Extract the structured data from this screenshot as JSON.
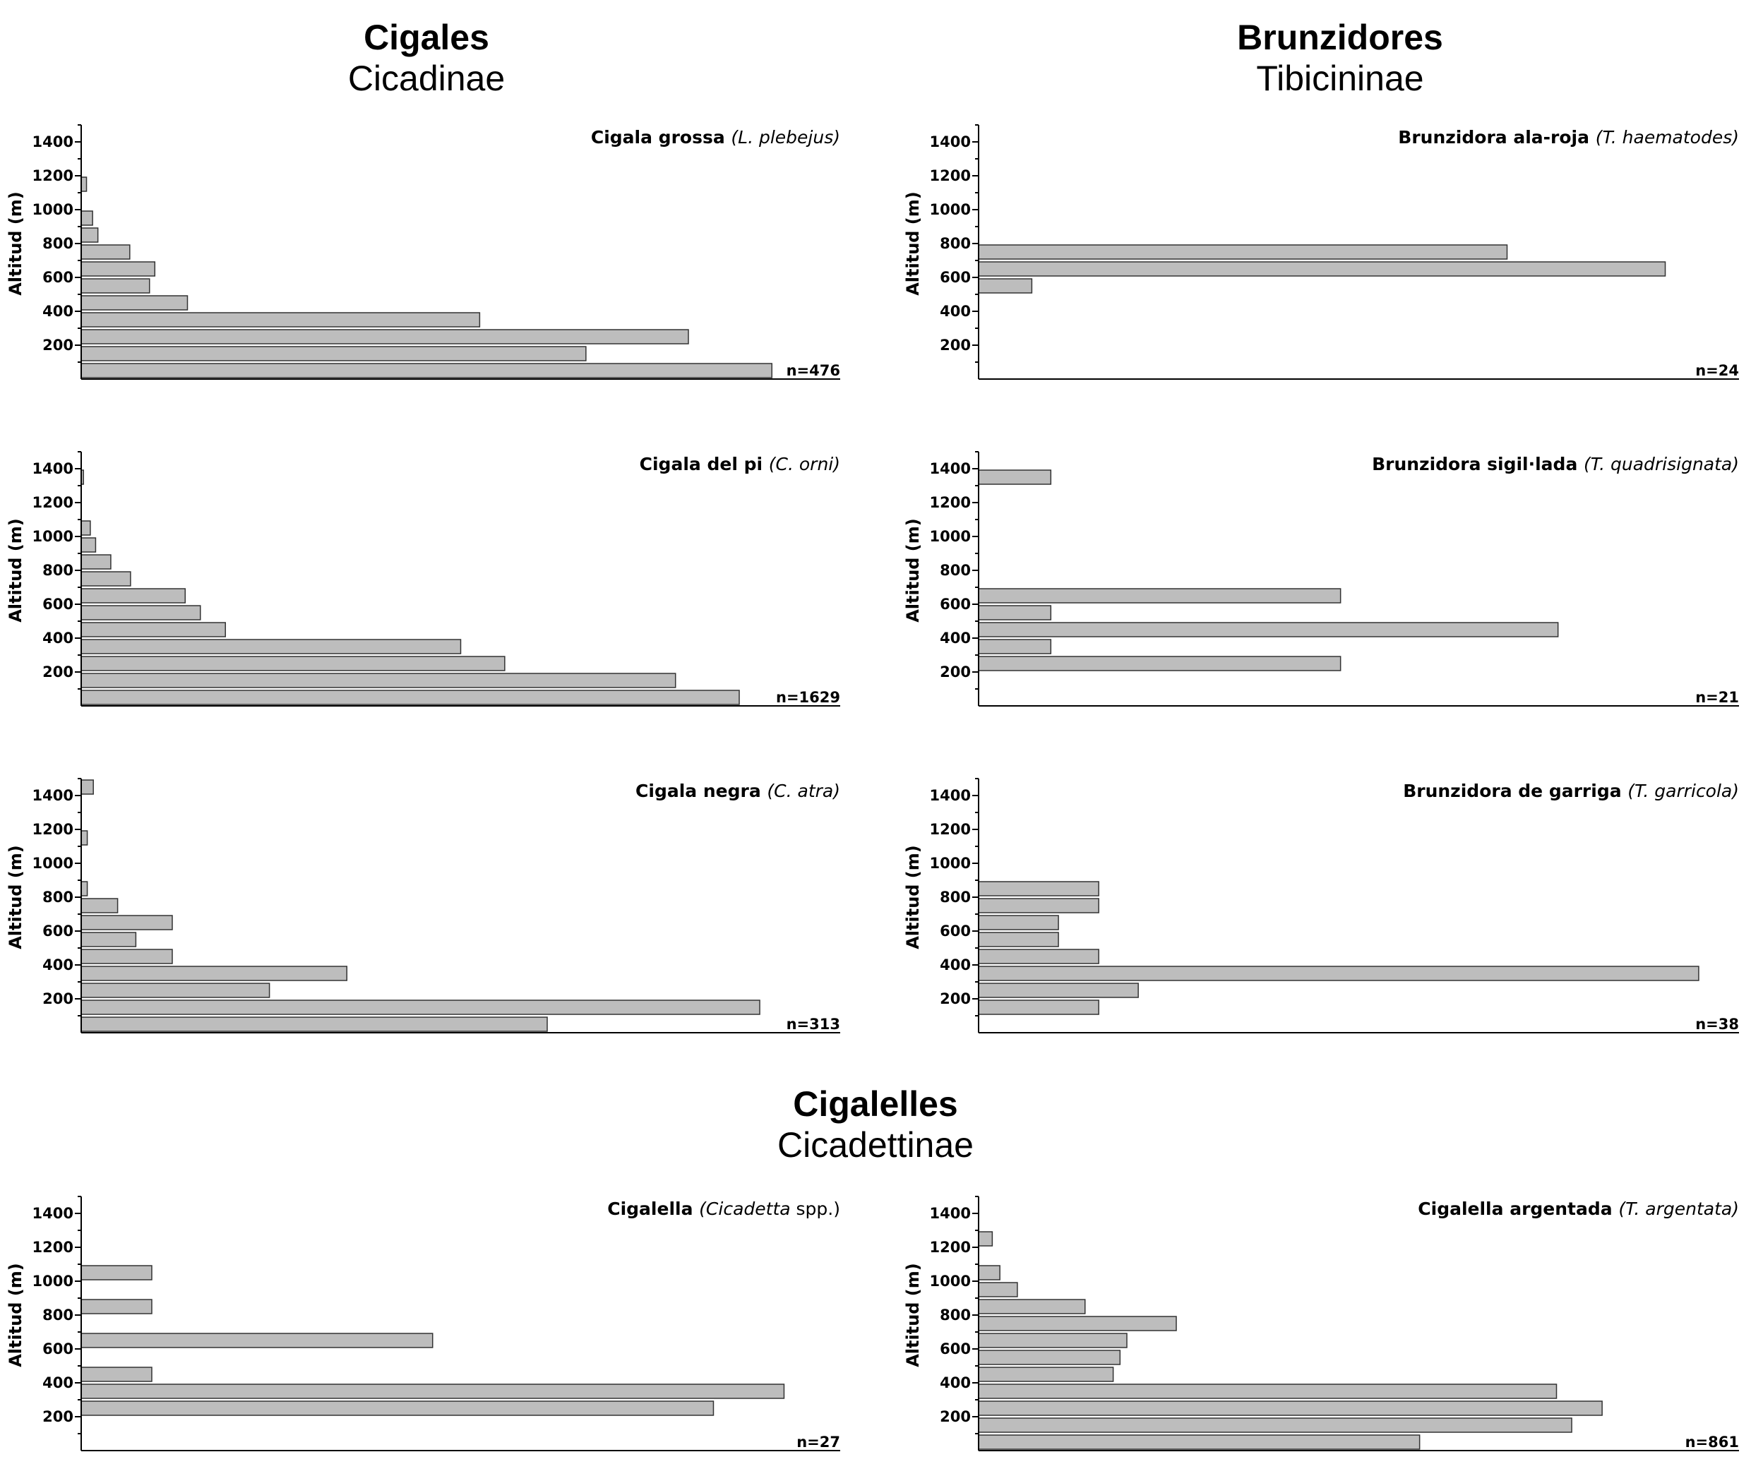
{
  "groups": [
    {
      "common": "Cigales",
      "latin": "Cicadinae"
    },
    {
      "common": "Brunzidores",
      "latin": "Tibicininae"
    },
    {
      "common": "Cigalelles",
      "latin": "Cicadettinae"
    }
  ],
  "colors": {
    "bar_fill": "#bdbdbd",
    "bar_stroke": "#333333",
    "axis": "#000000"
  },
  "chart_data": [
    {
      "type": "bar",
      "orientation": "horizontal",
      "title_common": "Cigala grossa",
      "title_latin": "(L. plebejus)",
      "ylabel": "Altitud (m)",
      "n_label": "n=476",
      "yticks": [
        "200",
        "400",
        "600",
        "800",
        "1000",
        "1200",
        "1400"
      ],
      "bin_width_m": 100,
      "ylim": [
        0,
        1500
      ],
      "xlim": [
        0,
        100
      ],
      "bins": [
        {
          "bin_start": 0,
          "value": 91
        },
        {
          "bin_start": 100,
          "value": 66.5
        },
        {
          "bin_start": 200,
          "value": 80
        },
        {
          "bin_start": 300,
          "value": 52.5
        },
        {
          "bin_start": 400,
          "value": 14
        },
        {
          "bin_start": 500,
          "value": 9
        },
        {
          "bin_start": 600,
          "value": 9.7
        },
        {
          "bin_start": 700,
          "value": 6.4
        },
        {
          "bin_start": 800,
          "value": 2.2
        },
        {
          "bin_start": 900,
          "value": 1.5
        },
        {
          "bin_start": 1100,
          "value": 0.7
        }
      ]
    },
    {
      "type": "bar",
      "orientation": "horizontal",
      "title_common": "Brunzidora ala-roja",
      "title_latin": "(T. haematodes)",
      "ylabel": "Altitud (m)",
      "n_label": "n=24",
      "yticks": [
        "200",
        "400",
        "600",
        "800",
        "1000",
        "1200",
        "1400"
      ],
      "bin_width_m": 100,
      "ylim": [
        0,
        1500
      ],
      "xlim": [
        0,
        100
      ],
      "bins": [
        {
          "bin_start": 500,
          "value": 7
        },
        {
          "bin_start": 600,
          "value": 90.3
        },
        {
          "bin_start": 700,
          "value": 69.5
        }
      ]
    },
    {
      "type": "bar",
      "orientation": "horizontal",
      "title_common": "Cigala del pi",
      "title_latin": "(C. orni)",
      "ylabel": "Altitud (m)",
      "n_label": "n=1629",
      "yticks": [
        "200",
        "400",
        "600",
        "800",
        "1000",
        "1200",
        "1400"
      ],
      "bin_width_m": 100,
      "ylim": [
        0,
        1500
      ],
      "xlim": [
        0,
        100
      ],
      "bins": [
        {
          "bin_start": 0,
          "value": 86.7
        },
        {
          "bin_start": 100,
          "value": 78.3
        },
        {
          "bin_start": 200,
          "value": 55.8
        },
        {
          "bin_start": 300,
          "value": 50
        },
        {
          "bin_start": 400,
          "value": 19
        },
        {
          "bin_start": 500,
          "value": 15.7
        },
        {
          "bin_start": 600,
          "value": 13.7
        },
        {
          "bin_start": 700,
          "value": 6.5
        },
        {
          "bin_start": 800,
          "value": 3.9
        },
        {
          "bin_start": 900,
          "value": 1.9
        },
        {
          "bin_start": 1000,
          "value": 1.2
        },
        {
          "bin_start": 1300,
          "value": 0.3
        }
      ]
    },
    {
      "type": "bar",
      "orientation": "horizontal",
      "title_common": "Brunzidora sigil·lada",
      "title_latin": "(T. quadrisignata)",
      "ylabel": "Altitud (m)",
      "n_label": "n=21",
      "yticks": [
        "200",
        "400",
        "600",
        "800",
        "1000",
        "1200",
        "1400"
      ],
      "bin_width_m": 100,
      "ylim": [
        0,
        1500
      ],
      "xlim": [
        0,
        100
      ],
      "bins": [
        {
          "bin_start": 200,
          "value": 47.6
        },
        {
          "bin_start": 300,
          "value": 9.5
        },
        {
          "bin_start": 400,
          "value": 76.2
        },
        {
          "bin_start": 500,
          "value": 9.5
        },
        {
          "bin_start": 600,
          "value": 47.6
        },
        {
          "bin_start": 1300,
          "value": 9.5
        }
      ]
    },
    {
      "type": "bar",
      "orientation": "horizontal",
      "title_common": "Cigala negra",
      "title_latin": "(C. atra)",
      "ylabel": "Altitud (m)",
      "n_label": "n=313",
      "yticks": [
        "200",
        "400",
        "600",
        "800",
        "1000",
        "1200",
        "1400"
      ],
      "bin_width_m": 100,
      "ylim": [
        0,
        1500
      ],
      "xlim": [
        0,
        100
      ],
      "bins": [
        {
          "bin_start": 0,
          "value": 61.4
        },
        {
          "bin_start": 100,
          "value": 89.4
        },
        {
          "bin_start": 200,
          "value": 24.8
        },
        {
          "bin_start": 300,
          "value": 35
        },
        {
          "bin_start": 400,
          "value": 12
        },
        {
          "bin_start": 500,
          "value": 7.2
        },
        {
          "bin_start": 600,
          "value": 12
        },
        {
          "bin_start": 700,
          "value": 4.8
        },
        {
          "bin_start": 800,
          "value": 0.8
        },
        {
          "bin_start": 1100,
          "value": 0.8
        },
        {
          "bin_start": 1400,
          "value": 1.6
        }
      ]
    },
    {
      "type": "bar",
      "orientation": "horizontal",
      "title_common": "Brunzidora de garriga",
      "title_latin": "(T. garricola)",
      "ylabel": "Altitud (m)",
      "n_label": "n=38",
      "yticks": [
        "200",
        "400",
        "600",
        "800",
        "1000",
        "1200",
        "1400"
      ],
      "bin_width_m": 100,
      "ylim": [
        0,
        1500
      ],
      "xlim": [
        0,
        100
      ],
      "bins": [
        {
          "bin_start": 100,
          "value": 15.8
        },
        {
          "bin_start": 200,
          "value": 21
        },
        {
          "bin_start": 300,
          "value": 94.7
        },
        {
          "bin_start": 400,
          "value": 15.8
        },
        {
          "bin_start": 500,
          "value": 10.5
        },
        {
          "bin_start": 600,
          "value": 10.5
        },
        {
          "bin_start": 700,
          "value": 15.8
        },
        {
          "bin_start": 800,
          "value": 15.8
        }
      ]
    },
    {
      "type": "bar",
      "orientation": "horizontal",
      "title_common": "Cigalella",
      "title_latin_pre": "(",
      "title_latin": "Cicadetta",
      "title_latin_post": "spp.)",
      "ylabel": "Altitud (m)",
      "n_label": "n=27",
      "yticks": [
        "200",
        "400",
        "600",
        "800",
        "1000",
        "1200",
        "1400"
      ],
      "bin_width_m": 100,
      "ylim": [
        0,
        1500
      ],
      "xlim": [
        0,
        100
      ],
      "bins": [
        {
          "bin_start": 200,
          "value": 83.3
        },
        {
          "bin_start": 300,
          "value": 92.6
        },
        {
          "bin_start": 400,
          "value": 9.3
        },
        {
          "bin_start": 600,
          "value": 46.3
        },
        {
          "bin_start": 800,
          "value": 9.3
        },
        {
          "bin_start": 1000,
          "value": 9.3
        }
      ]
    },
    {
      "type": "bar",
      "orientation": "horizontal",
      "title_common": "Cigalella argentada",
      "title_latin": "(T. argentata)",
      "ylabel": "Altitud (m)",
      "n_label": "n=861",
      "yticks": [
        "200",
        "400",
        "600",
        "800",
        "1000",
        "1200",
        "1400"
      ],
      "bin_width_m": 100,
      "ylim": [
        0,
        1500
      ],
      "xlim": [
        0,
        100
      ],
      "bins": [
        {
          "bin_start": 0,
          "value": 58
        },
        {
          "bin_start": 100,
          "value": 78
        },
        {
          "bin_start": 200,
          "value": 82
        },
        {
          "bin_start": 300,
          "value": 76
        },
        {
          "bin_start": 400,
          "value": 17.7
        },
        {
          "bin_start": 500,
          "value": 18.6
        },
        {
          "bin_start": 600,
          "value": 19.5
        },
        {
          "bin_start": 700,
          "value": 26
        },
        {
          "bin_start": 800,
          "value": 14
        },
        {
          "bin_start": 900,
          "value": 5.1
        },
        {
          "bin_start": 1000,
          "value": 2.8
        },
        {
          "bin_start": 1200,
          "value": 1.8
        }
      ]
    }
  ]
}
